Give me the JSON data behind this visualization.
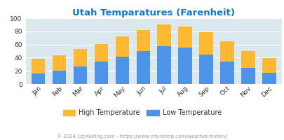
{
  "title": "Utah Temparatures (Farenheit)",
  "months": [
    "Jan",
    "Feb",
    "Mar",
    "Apr",
    "May",
    "Jun",
    "Jul",
    "Aug",
    "Sep",
    "Oct",
    "Nov",
    "Dec"
  ],
  "low_temps": [
    16,
    20,
    27,
    34,
    41,
    50,
    57,
    55,
    45,
    34,
    25,
    17
  ],
  "high_temps": [
    38,
    44,
    53,
    61,
    72,
    82,
    90,
    87,
    79,
    65,
    50,
    39
  ],
  "low_color": "#4d94e8",
  "high_color": "#ffb833",
  "bg_color": "#dce8ef",
  "title_color": "#1177cc",
  "axis_color": "#333333",
  "legend_color": "#333333",
  "footer_color": "#999999",
  "ylim": [
    0,
    100
  ],
  "yticks": [
    0,
    20,
    40,
    60,
    80,
    100
  ],
  "footer": "© 2024 CityRating.com - https://www.cityrating.com/weather-history/"
}
